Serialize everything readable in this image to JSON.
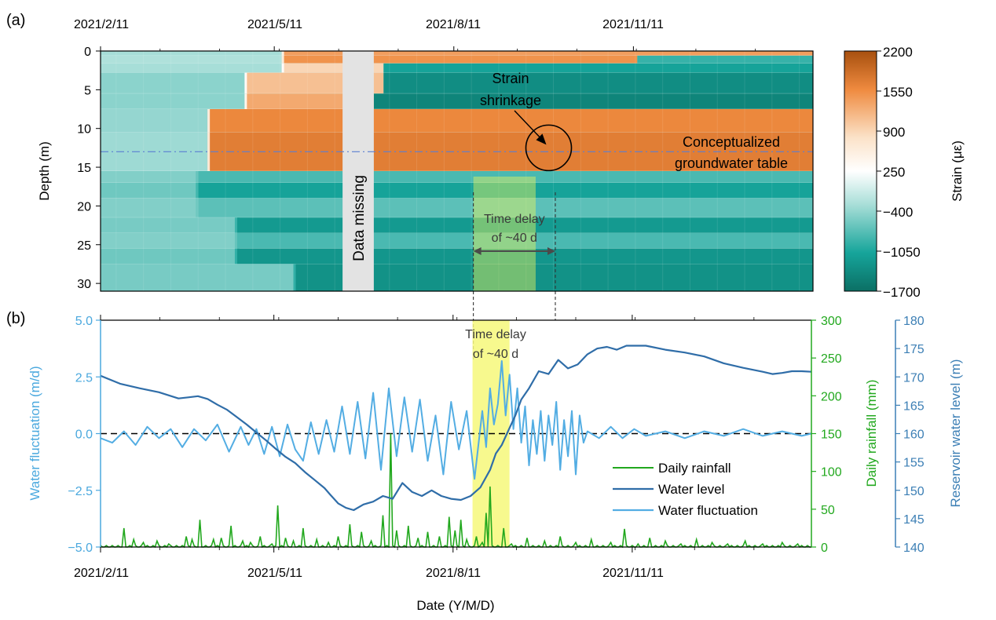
{
  "chart_data": [
    {
      "panel_label": "(a)",
      "type": "heatmap",
      "title": "",
      "xlabel": "",
      "ylabel": "Depth (m)",
      "x_ticks": [
        "2021/2/11",
        "2021/5/11",
        "2021/8/11",
        "2021/11/11"
      ],
      "x_ticks_days": [
        0,
        89,
        181,
        273
      ],
      "x_range_days": [
        0,
        365
      ],
      "y_range": [
        0,
        31
      ],
      "y_ticks": [
        0,
        5,
        10,
        15,
        20,
        25,
        30
      ],
      "colorbar": {
        "label": "Strain (με)",
        "ticks": [
          2200,
          1550,
          900,
          250,
          -400,
          -1050,
          -1700
        ],
        "range": [
          -1700,
          2200
        ],
        "colors": [
          "#a7500f",
          "#ef8a3f",
          "#fbe2c8",
          "#ffffff",
          "#a8ded8",
          "#16a59b",
          "#0b6f64"
        ]
      },
      "bands": [
        {
          "d0": 0,
          "d1": 0.6,
          "pre_start": 0,
          "pre_value": -300,
          "start": 94,
          "value": 1400,
          "end": 365
        },
        {
          "d0": 0.6,
          "d1": 1.6,
          "pre_start": 0,
          "pre_value": -250,
          "start": 94,
          "value": 1500,
          "late_start": 275,
          "late_value": -900
        },
        {
          "d0": 1.6,
          "d1": 2.8,
          "pre_start": 0,
          "pre_value": -300,
          "start": 94,
          "value": 900,
          "late_start": 145,
          "late_value": -1100
        },
        {
          "d0": 2.8,
          "d1": 5.5,
          "pre_start": 0,
          "pre_value": -450,
          "start": 75,
          "value": 1100,
          "late_start": 145,
          "late_value": -1350
        },
        {
          "d0": 5.5,
          "d1": 7.5,
          "pre_start": 0,
          "pre_value": -450,
          "start": 75,
          "value": 1300,
          "late_start": 140,
          "late_value": -1450
        },
        {
          "d0": 7.5,
          "d1": 10.5,
          "pre_start": 0,
          "pre_value": -400,
          "start": 56,
          "value": 1600,
          "late_start": 365,
          "late_value": 1600
        },
        {
          "d0": 10.5,
          "d1": 15.5,
          "pre_start": 0,
          "pre_value": -350,
          "start": 56,
          "value": 1700,
          "late_start": 365,
          "late_value": 1700
        },
        {
          "d0": 15.5,
          "d1": 17.0,
          "pre_start": 0,
          "pre_value": -500,
          "start": 50,
          "value": -800,
          "late_start": 365,
          "late_value": -800
        },
        {
          "d0": 17.0,
          "d1": 19.0,
          "pre_start": 0,
          "pre_value": -600,
          "start": 50,
          "value": -1100,
          "late_start": 365,
          "late_value": -1100
        },
        {
          "d0": 19.0,
          "d1": 21.5,
          "pre_start": 0,
          "pre_value": -500,
          "start": 50,
          "value": -700,
          "late_start": 365,
          "late_value": -700
        },
        {
          "d0": 21.5,
          "d1": 23.5,
          "pre_start": 0,
          "pre_value": -550,
          "start": 70,
          "value": -1200,
          "late_start": 365,
          "late_value": -1200
        },
        {
          "d0": 23.5,
          "d1": 25.5,
          "pre_start": 0,
          "pre_value": -500,
          "start": 70,
          "value": -800,
          "late_start": 365,
          "late_value": -800
        },
        {
          "d0": 25.5,
          "d1": 27.5,
          "pre_start": 0,
          "pre_value": -600,
          "start": 70,
          "value": -1250,
          "late_start": 365,
          "late_value": -1250
        },
        {
          "d0": 27.5,
          "d1": 31,
          "pre_start": 0,
          "pre_value": -550,
          "start": 100,
          "value": -1300,
          "late_start": 365,
          "late_value": -1300
        }
      ],
      "data_missing": {
        "start_day": 124,
        "end_day": 140,
        "label": "Data missing"
      },
      "groundwater_depth": 13,
      "annotations": {
        "groundwater": [
          "Conceptualized",
          "groundwater table"
        ],
        "shrinkage": [
          "Strain",
          "shrinkage"
        ],
        "shrinkage_point": {
          "day": 232,
          "depth": 12.5
        },
        "time_delay": [
          "Time delay",
          "of ~40 d"
        ],
        "delay_start_day": 191,
        "delay_end_day": 233
      }
    },
    {
      "panel_label": "(b)",
      "type": "line",
      "xlabel": "Date (Y/M/D)",
      "x_ticks": [
        "2021/2/11",
        "2021/5/11",
        "2021/8/11",
        "2021/11/11"
      ],
      "x_ticks_days": [
        0,
        89,
        181,
        273
      ],
      "x_range_days": [
        0,
        365
      ],
      "left_axis": {
        "label": "Water fluctuation (m/d)",
        "range": [
          -5,
          5
        ],
        "ticks": [
          "5.0",
          "2.5",
          "0.0",
          "−2.5",
          "−5.0"
        ],
        "color": "#4aa8de"
      },
      "right_axis_1": {
        "label": "Daily rainfall (mm)",
        "range": [
          0,
          300
        ],
        "ticks": [
          "300",
          "250",
          "200",
          "150",
          "100",
          "50",
          "0"
        ],
        "color": "#22a81e"
      },
      "right_axis_2": {
        "label": "Reservoir water level (m)",
        "range": [
          140,
          180
        ],
        "ticks": [
          "180",
          "175",
          "170",
          "165",
          "160",
          "155",
          "150",
          "145",
          "140"
        ],
        "color": "#3c7fb5"
      },
      "legend": [
        "Daily rainfall",
        "Water level",
        "Water fluctuation"
      ],
      "legend_placement": "lower-right",
      "highlight_window_days": [
        191,
        210
      ],
      "highlight_color": "#f6f87a",
      "annotations": {
        "time_delay": [
          "Time delay",
          "of ~40 d"
        ]
      },
      "series": [
        {
          "name": "Water level",
          "axis": "right_axis_2",
          "color": "#2f6da8",
          "x": [
            0,
            10,
            20,
            30,
            40,
            45,
            50,
            55,
            60,
            65,
            70,
            75,
            80,
            85,
            90,
            95,
            100,
            105,
            110,
            115,
            118,
            122,
            126,
            130,
            135,
            140,
            145,
            150,
            155,
            160,
            165,
            170,
            175,
            180,
            185,
            190,
            195,
            200,
            203,
            206,
            210,
            213,
            216,
            220,
            225,
            230,
            235,
            240,
            245,
            250,
            255,
            260,
            265,
            270,
            275,
            280,
            290,
            300,
            310,
            320,
            330,
            340,
            345,
            350,
            355,
            360,
            365
          ],
          "y": [
            170.2,
            168.8,
            168,
            167.3,
            166.2,
            166.4,
            166.6,
            166.1,
            165.1,
            164.2,
            162.9,
            161.6,
            160.2,
            158.8,
            157.3,
            155.9,
            154.8,
            153.2,
            151.8,
            150.4,
            149.2,
            147.7,
            146.9,
            146.5,
            147.5,
            148,
            149,
            148.5,
            151.3,
            149.7,
            149,
            150,
            149,
            148.5,
            148.3,
            149,
            150.5,
            153.6,
            156.5,
            158,
            161,
            163.2,
            166,
            168,
            171,
            170.5,
            173,
            171.5,
            172.2,
            174,
            175,
            175.3,
            174.8,
            175.5,
            175.5,
            175.5,
            174.8,
            174.3,
            173.6,
            172.4,
            171.6,
            170.9,
            170.5,
            170.7,
            171,
            171,
            170.9
          ]
        },
        {
          "name": "Water fluctuation",
          "axis": "left_axis",
          "color": "#53ade3",
          "x": [
            0,
            6,
            12,
            18,
            24,
            30,
            36,
            42,
            48,
            54,
            60,
            66,
            72,
            76,
            80,
            84,
            88,
            92,
            96,
            100,
            104,
            108,
            112,
            116,
            120,
            124,
            128,
            132,
            136,
            140,
            144,
            148,
            152,
            156,
            160,
            164,
            168,
            172,
            176,
            180,
            184,
            188,
            192,
            196,
            198,
            200,
            202,
            204,
            206,
            208,
            210,
            212,
            214,
            216,
            218,
            220,
            222,
            224,
            226,
            228,
            230,
            232,
            234,
            236,
            238,
            240,
            242,
            244,
            246,
            248,
            250,
            256,
            262,
            268,
            274,
            280,
            290,
            300,
            310,
            320,
            330,
            340,
            350,
            360,
            365
          ],
          "y": [
            -0.2,
            -0.4,
            0.1,
            -0.5,
            0.3,
            -0.2,
            0.2,
            -0.6,
            0.2,
            -0.3,
            0.4,
            -0.8,
            0.3,
            -0.5,
            0.2,
            -0.9,
            0.3,
            -1.0,
            0.4,
            -0.7,
            -1.2,
            0.5,
            -0.9,
            0.6,
            -0.8,
            1.2,
            -0.9,
            1.4,
            -1.1,
            1.8,
            -1.6,
            2.0,
            -1.0,
            1.6,
            -0.8,
            1.5,
            -1.2,
            0.8,
            -1.8,
            1.4,
            -0.7,
            1.0,
            -2.0,
            1.0,
            -0.6,
            2.0,
            0.4,
            1.3,
            3.2,
            0.8,
            2.6,
            0.2,
            2.0,
            -0.4,
            1.2,
            -1.4,
            0.6,
            -0.9,
            1.0,
            -1.2,
            0.8,
            -0.5,
            1.4,
            -1.6,
            0.6,
            -1.0,
            1.0,
            -1.8,
            0.8,
            -0.4,
            0.1,
            -0.2,
            0.3,
            -0.2,
            0.2,
            -0.1,
            0.1,
            -0.2,
            0.1,
            -0.1,
            0.2,
            -0.1,
            0.1,
            -0.1,
            0.0
          ]
        },
        {
          "name": "Daily rainfall",
          "axis": "right_axis_1",
          "color": "#22a81e",
          "x": [
            12,
            17,
            22,
            29,
            35,
            44,
            47,
            51,
            58,
            62,
            67,
            73,
            77,
            82,
            88,
            91,
            95,
            99,
            104,
            111,
            117,
            122,
            128,
            134,
            139,
            145,
            149,
            152,
            158,
            163,
            168,
            174,
            179,
            182,
            185,
            188,
            193,
            196,
            198,
            200,
            207,
            211,
            219,
            228,
            236,
            244,
            252,
            262,
            269,
            276,
            282,
            290,
            298,
            306,
            314,
            322,
            331,
            340,
            350,
            358
          ],
          "y": [
            25,
            10,
            6,
            8,
            4,
            14,
            10,
            36,
            10,
            12,
            28,
            8,
            6,
            14,
            4,
            55,
            12,
            8,
            25,
            10,
            6,
            14,
            30,
            20,
            8,
            42,
            150,
            22,
            28,
            12,
            20,
            14,
            40,
            22,
            36,
            10,
            14,
            6,
            45,
            80,
            25,
            4,
            12,
            8,
            14,
            6,
            10,
            6,
            24,
            4,
            12,
            8,
            4,
            10,
            6,
            4,
            8,
            4,
            6,
            4
          ]
        }
      ]
    }
  ]
}
